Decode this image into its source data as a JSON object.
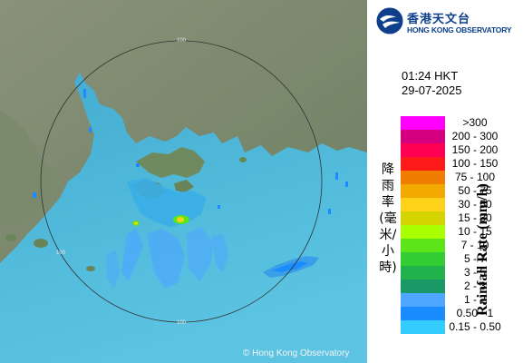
{
  "header": {
    "org_name_cn": "香港天文台",
    "org_name_en": "HONG KONG OBSERVATORY"
  },
  "timestamp": {
    "time": "01:24 HKT",
    "date": "29-07-2025"
  },
  "legend": {
    "title_en": "Rainfall Rate (mm/h)",
    "title_cn": "降雨率(毫米/小時)",
    "items": [
      {
        "label": ">300",
        "color": "#ff00ff"
      },
      {
        "label": "200 - 300",
        "color": "#d4007f"
      },
      {
        "label": "150 - 200",
        "color": "#ff0054"
      },
      {
        "label": "100 - 150",
        "color": "#ff1a1a"
      },
      {
        "label": "75 - 100",
        "color": "#f07c00"
      },
      {
        "label": "50 - 75",
        "color": "#f2a900"
      },
      {
        "label": "30 - 50",
        "color": "#ffd21a"
      },
      {
        "label": "15 - 30",
        "color": "#d4d400"
      },
      {
        "label": "10 - 15",
        "color": "#aaff00"
      },
      {
        "label": "7 - 10",
        "color": "#5ce61a"
      },
      {
        "label": "5 - 7",
        "color": "#33cc33"
      },
      {
        "label": "3 - 5",
        "color": "#22b24c"
      },
      {
        "label": "2 - 3",
        "color": "#1a9966"
      },
      {
        "label": "1 - 2",
        "color": "#4da6ff"
      },
      {
        "label": "0.50 - 1",
        "color": "#1a8cff"
      },
      {
        "label": "0.15 - 0.50",
        "color": "#33ccff"
      }
    ]
  },
  "map": {
    "range_rings": [
      "100",
      "100",
      "100"
    ],
    "land_color": "#7d8c6e",
    "sea_color": "#4fb6d8"
  },
  "footer": {
    "copyright": "© Hong Kong Observatory"
  }
}
